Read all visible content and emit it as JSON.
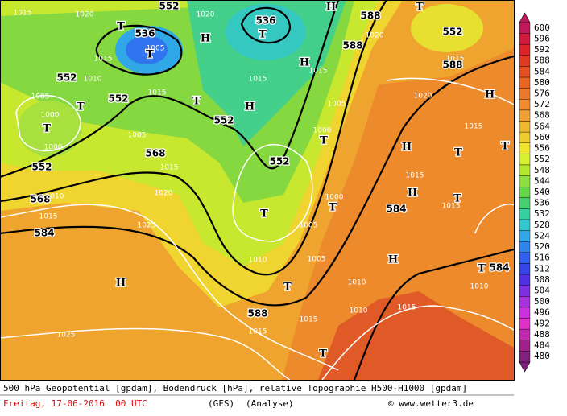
{
  "colorbar": {
    "labels": [
      600,
      596,
      592,
      588,
      584,
      580,
      576,
      572,
      568,
      564,
      560,
      556,
      552,
      548,
      544,
      540,
      536,
      532,
      528,
      524,
      520,
      516,
      512,
      508,
      504,
      500,
      496,
      492,
      488,
      484,
      480
    ],
    "colors": [
      "#c0185a",
      "#d01c3c",
      "#dc2428",
      "#e03a22",
      "#e45020",
      "#e86420",
      "#ec7828",
      "#f08c2c",
      "#f0a030",
      "#f0b830",
      "#f0cc30",
      "#f0e430",
      "#d8f030",
      "#b4e830",
      "#8ce040",
      "#64d848",
      "#44d070",
      "#34d0a0",
      "#30c8d0",
      "#30a8e8",
      "#3084f0",
      "#3060f0",
      "#3444e8",
      "#5030e0",
      "#7c30e0",
      "#a830e0",
      "#cc30e0",
      "#e030c8",
      "#c428b0",
      "#a02090",
      "#802080"
    ]
  },
  "map_labels": [
    "552",
    "536",
    "536",
    "552",
    "552",
    "552",
    "552",
    "568",
    "568",
    "584",
    "552",
    "588",
    "588",
    "552",
    "588",
    "584",
    "584",
    "588",
    "1015",
    "1020",
    "1020",
    "1005",
    "1015",
    "1010",
    "1005",
    "1000",
    "1000",
    "1015",
    "1015",
    "1015",
    "1005",
    "1000",
    "1020",
    "1015",
    "1020",
    "1015",
    "1005",
    "1015",
    "1020",
    "1010",
    "1015",
    "1025",
    "1005",
    "1000",
    "1015",
    "1005",
    "1010",
    "1015",
    "1010",
    "1010",
    "1015",
    "1015",
    "1015",
    "1010",
    "1025",
    "T",
    "T",
    "H",
    "T",
    "H",
    "T",
    "H",
    "H",
    "T",
    "T",
    "T",
    "T",
    "H",
    "T",
    "T",
    "H",
    "H",
    "T",
    "T",
    "T",
    "H",
    "T",
    "H",
    "T",
    "T"
  ],
  "caption": {
    "line1": "500 hPa Geopotential [gpdam], Bodendruck [hPa], relative Topographie H500-H1000 [gpdam]",
    "date": "Freitag, 17-06-2016  00 UTC",
    "model": "(GFS)",
    "run": "(Analyse)",
    "source": "© www.wetter3.de"
  }
}
